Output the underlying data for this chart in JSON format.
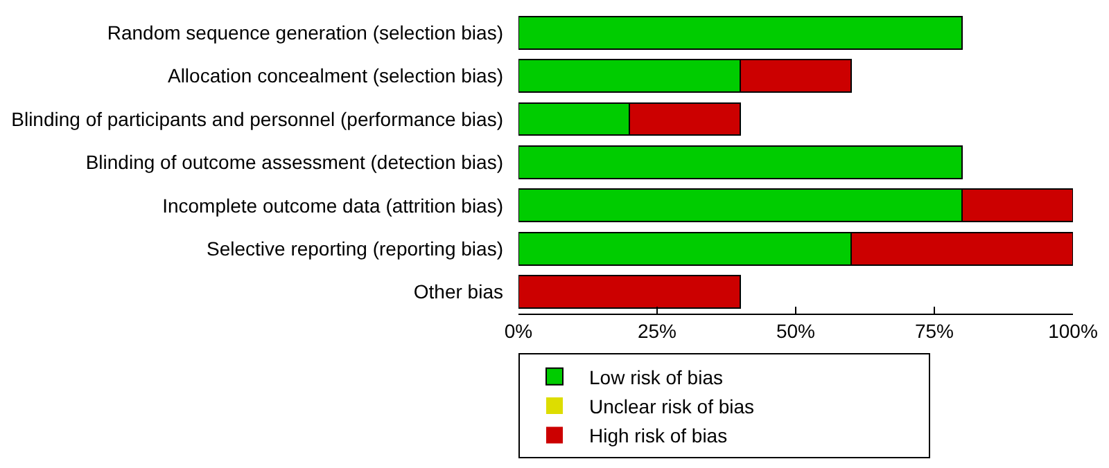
{
  "chart_data": {
    "type": "bar",
    "orientation": "horizontal",
    "stacked": true,
    "categories": [
      "Random sequence generation (selection bias)",
      "Allocation concealment (selection bias)",
      "Blinding of participants and personnel (performance bias)",
      "Blinding of outcome assessment (detection bias)",
      "Incomplete outcome data (attrition bias)",
      "Selective reporting (reporting bias)",
      "Other bias"
    ],
    "series": [
      {
        "name": "Low risk of bias",
        "color": "#00cc00",
        "values": [
          80,
          40,
          20,
          80,
          80,
          60,
          0
        ]
      },
      {
        "name": "Unclear risk of bias",
        "color": "#dddd00",
        "values": [
          0,
          0,
          0,
          0,
          0,
          0,
          0
        ]
      },
      {
        "name": "High risk of bias",
        "color": "#cc0000",
        "values": [
          0,
          20,
          20,
          0,
          20,
          40,
          40
        ]
      }
    ],
    "xlim": [
      0,
      100
    ],
    "xticks": [
      {
        "value": 0,
        "label": "0%"
      },
      {
        "value": 25,
        "label": "25%"
      },
      {
        "value": 50,
        "label": "50%"
      },
      {
        "value": 75,
        "label": "75%"
      },
      {
        "value": 100,
        "label": "100%"
      }
    ],
    "grid": false,
    "legend": "bottom"
  }
}
